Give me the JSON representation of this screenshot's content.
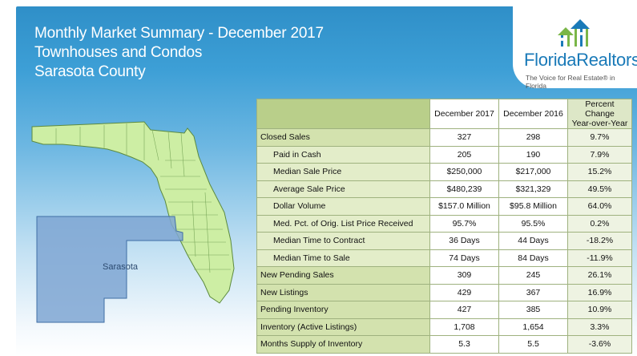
{
  "header": {
    "line1": "Monthly Market Summary - December 2017",
    "line2": "Townhouses and Condos",
    "line3": "Sarasota County"
  },
  "logo": {
    "name": "FloridaRealtors",
    "registered": "®",
    "tagline": "The Voice for Real Estate® in Florida",
    "icon": "houses-people-logo-icon"
  },
  "map": {
    "county_label": "Sarasota",
    "colors": {
      "state": "#cdeea4",
      "county": "#7fa6d2",
      "border": "#5c8a3e"
    }
  },
  "table": {
    "headers": {
      "current": "December 2017",
      "previous": "December 2016",
      "pct_line1": "Percent Change",
      "pct_line2": "Year-over-Year"
    },
    "rows": [
      {
        "label": "Closed Sales",
        "sub": false,
        "current": "327",
        "previous": "298",
        "pct": "9.7%"
      },
      {
        "label": "Paid in Cash",
        "sub": true,
        "current": "205",
        "previous": "190",
        "pct": "7.9%"
      },
      {
        "label": "Median Sale Price",
        "sub": true,
        "current": "$250,000",
        "previous": "$217,000",
        "pct": "15.2%"
      },
      {
        "label": "Average Sale Price",
        "sub": true,
        "current": "$480,239",
        "previous": "$321,329",
        "pct": "49.5%"
      },
      {
        "label": "Dollar Volume",
        "sub": true,
        "current": "$157.0 Million",
        "previous": "$95.8 Million",
        "pct": "64.0%"
      },
      {
        "label": "Med. Pct. of Orig. List Price Received",
        "sub": true,
        "current": "95.7%",
        "previous": "95.5%",
        "pct": "0.2%"
      },
      {
        "label": "Median Time to Contract",
        "sub": true,
        "current": "36 Days",
        "previous": "44 Days",
        "pct": "-18.2%"
      },
      {
        "label": "Median Time to Sale",
        "sub": true,
        "current": "74 Days",
        "previous": "84 Days",
        "pct": "-11.9%"
      },
      {
        "label": "New Pending Sales",
        "sub": false,
        "current": "309",
        "previous": "245",
        "pct": "26.1%"
      },
      {
        "label": "New Listings",
        "sub": false,
        "current": "429",
        "previous": "367",
        "pct": "16.9%"
      },
      {
        "label": "Pending Inventory",
        "sub": false,
        "current": "427",
        "previous": "385",
        "pct": "10.9%"
      },
      {
        "label": "Inventory (Active Listings)",
        "sub": false,
        "current": "1,708",
        "previous": "1,654",
        "pct": "3.3%"
      },
      {
        "label": "Months Supply of Inventory",
        "sub": false,
        "current": "5.3",
        "previous": "5.5",
        "pct": "-3.6%"
      }
    ]
  }
}
